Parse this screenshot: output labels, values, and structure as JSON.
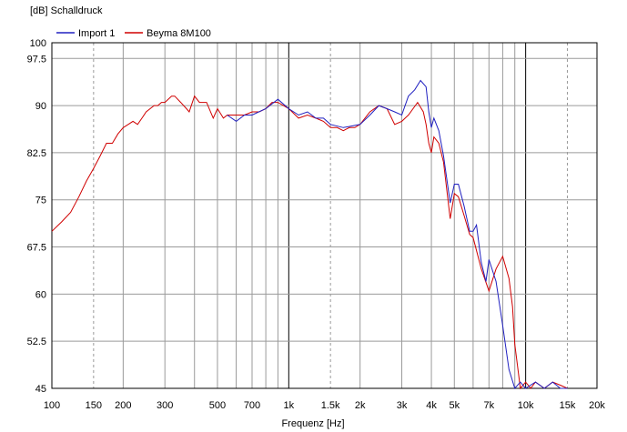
{
  "chart_data": {
    "type": "line",
    "title": "",
    "ylabel": "[dB]  Schalldruck",
    "xlabel": "Frequenz [Hz]",
    "x_scale": "log",
    "xlim": [
      100,
      20000
    ],
    "ylim": [
      45,
      100
    ],
    "x_ticks": [
      100,
      150,
      200,
      300,
      500,
      700,
      1000,
      1500,
      2000,
      3000,
      4000,
      5000,
      7000,
      10000,
      15000,
      20000
    ],
    "x_tick_labels": [
      "100",
      "150",
      "200",
      "300",
      "500",
      "700",
      "1k",
      "1.5k",
      "2k",
      "3k",
      "4k",
      "5k",
      "7k",
      "10k",
      "15k",
      "20k"
    ],
    "y_ticks": [
      45,
      52.5,
      60,
      67.5,
      75,
      82.5,
      90,
      97.5,
      100
    ],
    "y_tick_labels": [
      "45",
      "52.5",
      "60",
      "67.5",
      "75",
      "82.5",
      "90",
      "97.5",
      "100"
    ],
    "grid": true,
    "legend_position": "top-left",
    "series": [
      {
        "name": "Import 1",
        "color": "#2020c0",
        "x": [
          550,
          600,
          650,
          700,
          800,
          900,
          1000,
          1100,
          1200,
          1300,
          1400,
          1500,
          1700,
          2000,
          2200,
          2400,
          2600,
          2800,
          3000,
          3200,
          3400,
          3600,
          3800,
          3900,
          4000,
          4100,
          4300,
          4500,
          4800,
          5000,
          5200,
          5500,
          5800,
          6000,
          6200,
          6500,
          6800,
          7000,
          7500,
          8000,
          8500,
          9000,
          9500,
          10000,
          11000,
          12000,
          13000,
          14000,
          15000
        ],
        "y": [
          88.5,
          87.5,
          88.5,
          88.5,
          89.5,
          91,
          89.5,
          88.5,
          89,
          88,
          88,
          87,
          86.5,
          87,
          88.5,
          90,
          89.5,
          89,
          88.5,
          91.5,
          92.5,
          94,
          93,
          89,
          86.5,
          88,
          86,
          82,
          74.5,
          77.5,
          77.5,
          74,
          70,
          70,
          71,
          65,
          62,
          65.5,
          62,
          55,
          48,
          45,
          46,
          45,
          46,
          45,
          46,
          45,
          45
        ]
      },
      {
        "name": "Beyma 8M100",
        "color": "#d00000",
        "x": [
          100,
          110,
          120,
          130,
          140,
          150,
          160,
          170,
          180,
          190,
          200,
          210,
          220,
          230,
          240,
          250,
          260,
          270,
          280,
          290,
          300,
          320,
          330,
          350,
          370,
          380,
          400,
          420,
          450,
          480,
          500,
          530,
          550,
          600,
          650,
          700,
          750,
          800,
          850,
          900,
          950,
          1000,
          1100,
          1200,
          1300,
          1400,
          1500,
          1600,
          1700,
          1800,
          1900,
          2000,
          2200,
          2400,
          2600,
          2800,
          3000,
          3200,
          3500,
          3700,
          3800,
          3900,
          4000,
          4100,
          4300,
          4500,
          4800,
          5000,
          5200,
          5500,
          5800,
          6000,
          6500,
          7000,
          7500,
          8000,
          8500,
          8800,
          9000,
          9500,
          10000,
          10500,
          11000,
          12000,
          13000,
          14000,
          15000
        ],
        "y": [
          70,
          71.5,
          73,
          75.5,
          78,
          80,
          82,
          84,
          84,
          85.5,
          86.5,
          87,
          87.5,
          87,
          88,
          89,
          89.5,
          90,
          90,
          90.5,
          90.5,
          91.5,
          91.5,
          90.5,
          89.5,
          89,
          91.5,
          90.5,
          90.5,
          88,
          89.5,
          88,
          88.5,
          88.5,
          88.5,
          89,
          89,
          89.5,
          90.5,
          90.5,
          90,
          89.5,
          88,
          88.5,
          88,
          87.5,
          86.5,
          86.5,
          86,
          86.5,
          86.5,
          87,
          89,
          90,
          89.5,
          87,
          87.5,
          88.5,
          90.5,
          89,
          87,
          84,
          82.5,
          85,
          84,
          81,
          72,
          76,
          75.5,
          72.5,
          69.5,
          69,
          64,
          60.5,
          64,
          66,
          62.5,
          58,
          52,
          45,
          46,
          45,
          46,
          45,
          46,
          45.5,
          45
        ]
      }
    ]
  }
}
